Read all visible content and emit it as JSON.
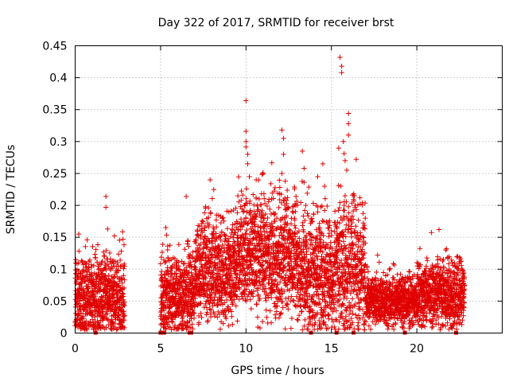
{
  "chart_data": {
    "type": "scatter",
    "title": "Day 322 of 2017, SRMTID for receiver brst",
    "xlabel": "GPS time / hours",
    "ylabel": "SRMTID / TECUs",
    "xlim": [
      0,
      25
    ],
    "ylim": [
      0,
      0.45
    ],
    "xticks": [
      0,
      5,
      10,
      15,
      20
    ],
    "xtick_labels": [
      "0",
      "5",
      "10",
      "15",
      "20"
    ],
    "yticks": [
      0,
      0.05,
      0.1,
      0.15,
      0.2,
      0.25,
      0.3,
      0.35,
      0.4,
      0.45
    ],
    "ytick_labels": [
      "0",
      "0.05",
      "0.1",
      "0.15",
      "0.2",
      "0.25",
      "0.3",
      "0.35",
      "0.4",
      "0.45"
    ],
    "grid": true,
    "marker": "+",
    "color": "#e00000",
    "series": [
      {
        "name": "SRMTID",
        "envelope": [
          {
            "t0": 0.0,
            "t1": 2.9,
            "base": 0.055,
            "spread": 0.05
          },
          {
            "t0": 5.0,
            "t1": 7.0,
            "base": 0.055,
            "spread": 0.05
          },
          {
            "t0": 7.0,
            "t1": 9.5,
            "base": 0.095,
            "spread": 0.06
          },
          {
            "t0": 9.5,
            "t1": 13.0,
            "base": 0.12,
            "spread": 0.07
          },
          {
            "t0": 13.0,
            "t1": 15.2,
            "base": 0.09,
            "spread": 0.07
          },
          {
            "t0": 15.2,
            "t1": 17.0,
            "base": 0.1,
            "spread": 0.08
          },
          {
            "t0": 17.0,
            "t1": 20.0,
            "base": 0.05,
            "spread": 0.03
          },
          {
            "t0": 20.0,
            "t1": 22.8,
            "base": 0.06,
            "spread": 0.04
          }
        ],
        "peaks": [
          {
            "x": 1.8,
            "y": 0.214
          },
          {
            "x": 1.8,
            "y": 0.197
          },
          {
            "x": 1.9,
            "y": 0.163
          },
          {
            "x": 2.3,
            "y": 0.152
          },
          {
            "x": 2.8,
            "y": 0.147
          },
          {
            "x": 0.7,
            "y": 0.146
          },
          {
            "x": 6.5,
            "y": 0.214
          },
          {
            "x": 6.6,
            "y": 0.145
          },
          {
            "x": 7.8,
            "y": 0.196
          },
          {
            "x": 7.9,
            "y": 0.24
          },
          {
            "x": 8.6,
            "y": 0.18
          },
          {
            "x": 9.0,
            "y": 0.19
          },
          {
            "x": 9.9,
            "y": 0.2
          },
          {
            "x": 10.0,
            "y": 0.364
          },
          {
            "x": 10.0,
            "y": 0.316
          },
          {
            "x": 10.0,
            "y": 0.3
          },
          {
            "x": 10.1,
            "y": 0.28
          },
          {
            "x": 10.1,
            "y": 0.265
          },
          {
            "x": 10.2,
            "y": 0.245
          },
          {
            "x": 10.6,
            "y": 0.24
          },
          {
            "x": 11.0,
            "y": 0.25
          },
          {
            "x": 11.5,
            "y": 0.21
          },
          {
            "x": 12.1,
            "y": 0.318
          },
          {
            "x": 12.2,
            "y": 0.305
          },
          {
            "x": 12.2,
            "y": 0.28
          },
          {
            "x": 12.1,
            "y": 0.25
          },
          {
            "x": 12.3,
            "y": 0.238
          },
          {
            "x": 13.3,
            "y": 0.285
          },
          {
            "x": 13.4,
            "y": 0.258
          },
          {
            "x": 13.4,
            "y": 0.236
          },
          {
            "x": 13.5,
            "y": 0.2
          },
          {
            "x": 14.2,
            "y": 0.245
          },
          {
            "x": 14.5,
            "y": 0.265
          },
          {
            "x": 14.6,
            "y": 0.23
          },
          {
            "x": 15.5,
            "y": 0.432
          },
          {
            "x": 15.6,
            "y": 0.418
          },
          {
            "x": 15.6,
            "y": 0.408
          },
          {
            "x": 15.7,
            "y": 0.3
          },
          {
            "x": 15.8,
            "y": 0.27
          },
          {
            "x": 16.0,
            "y": 0.344
          },
          {
            "x": 16.0,
            "y": 0.328
          },
          {
            "x": 16.0,
            "y": 0.31
          },
          {
            "x": 15.9,
            "y": 0.255
          },
          {
            "x": 15.8,
            "y": 0.215
          },
          {
            "x": 16.4,
            "y": 0.2
          },
          {
            "x": 16.9,
            "y": 0.165
          },
          {
            "x": 21.3,
            "y": 0.162
          },
          {
            "x": 21.7,
            "y": 0.13
          }
        ],
        "zero_markers": [
          1.2,
          5.0,
          5.2,
          6.7,
          6.8,
          13.8,
          15.3,
          16.3,
          19.3,
          22.3
        ]
      }
    ]
  }
}
